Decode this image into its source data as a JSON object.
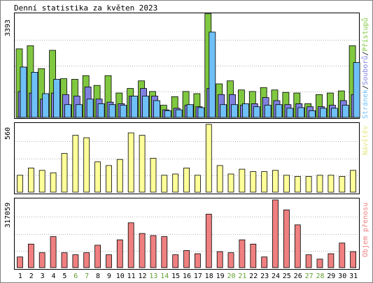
{
  "title": "Denní statistika za květen 2023",
  "colors": {
    "background": "#ffffff",
    "panel_border": "#000000",
    "grid": "#b4b4b4",
    "pristupy": "#80c840",
    "soubory": "#8080e0",
    "stranky": "#70c0f8",
    "navstevy": "#ffff99",
    "objem": "#f08080",
    "weekend_label": "#60a030",
    "weekday_label": "#000000"
  },
  "chart_data": [
    {
      "type": "bar",
      "name": "hits",
      "ymax_label": "3393",
      "ylim": [
        0,
        3393
      ],
      "legend": [
        {
          "text": "Stránek",
          "color": "#70c0f8"
        },
        {
          "text": "Souborů",
          "color": "#8080e0"
        },
        {
          "text": "Přístupů",
          "color": "#80c840"
        }
      ],
      "categories": [
        "1",
        "2",
        "3",
        "4",
        "5",
        "6",
        "7",
        "8",
        "9",
        "10",
        "11",
        "12",
        "13",
        "14",
        "15",
        "16",
        "17",
        "18",
        "19",
        "20",
        "21",
        "22",
        "23",
        "24",
        "25",
        "26",
        "27",
        "28",
        "29",
        "30",
        "31"
      ],
      "weekend": [
        6,
        7,
        13,
        14,
        20,
        21,
        27,
        28
      ],
      "series": [
        {
          "name": "Přístupů",
          "color": "#80c840",
          "values": [
            2250,
            2350,
            1600,
            2200,
            1270,
            1250,
            1370,
            1050,
            1370,
            800,
            950,
            1200,
            850,
            400,
            680,
            850,
            780,
            3400,
            1100,
            1200,
            900,
            850,
            980,
            900,
            820,
            800,
            450,
            750,
            800,
            870,
            2350
          ]
        },
        {
          "name": "Souborů",
          "color": "#8080e0",
          "values": [
            850,
            800,
            600,
            800,
            750,
            700,
            1000,
            600,
            500,
            450,
            700,
            950,
            700,
            250,
            300,
            400,
            350,
            950,
            750,
            750,
            400,
            450,
            650,
            550,
            420,
            450,
            350,
            350,
            400,
            550,
            750
          ]
        },
        {
          "name": "Stránek",
          "color": "#70c0f8",
          "values": [
            1650,
            1480,
            780,
            1250,
            420,
            420,
            600,
            450,
            420,
            400,
            700,
            700,
            550,
            220,
            250,
            420,
            320,
            2800,
            420,
            420,
            450,
            350,
            400,
            420,
            300,
            320,
            220,
            300,
            300,
            400,
            1800
          ]
        }
      ]
    },
    {
      "type": "bar",
      "name": "visits",
      "ymax_label": "560",
      "ylim": [
        0,
        560
      ],
      "legend": [
        {
          "text": "Návštěv",
          "color": "#ffff99"
        }
      ],
      "categories": [
        "1",
        "2",
        "3",
        "4",
        "5",
        "6",
        "7",
        "8",
        "9",
        "10",
        "11",
        "12",
        "13",
        "14",
        "15",
        "16",
        "17",
        "18",
        "19",
        "20",
        "21",
        "22",
        "23",
        "24",
        "25",
        "26",
        "27",
        "28",
        "29",
        "30",
        "31"
      ],
      "series": [
        {
          "name": "Návštěv",
          "color": "#ffff99",
          "values": [
            140,
            200,
            180,
            160,
            320,
            470,
            450,
            250,
            220,
            270,
            490,
            470,
            280,
            140,
            150,
            200,
            140,
            560,
            220,
            150,
            190,
            170,
            170,
            180,
            140,
            130,
            130,
            140,
            140,
            130,
            180
          ]
        }
      ]
    },
    {
      "type": "bar",
      "name": "volume",
      "ymax_label": "317059",
      "ylim": [
        0,
        317059
      ],
      "legend": [
        {
          "text": "Objem přenosu",
          "color": "#f08080"
        }
      ],
      "categories": [
        "1",
        "2",
        "3",
        "4",
        "5",
        "6",
        "7",
        "8",
        "9",
        "10",
        "11",
        "12",
        "13",
        "14",
        "15",
        "16",
        "17",
        "18",
        "19",
        "20",
        "21",
        "22",
        "23",
        "24",
        "25",
        "26",
        "27",
        "28",
        "29",
        "30",
        "31"
      ],
      "series": [
        {
          "name": "Objem přenosu",
          "color": "#f08080",
          "values": [
            50000,
            110000,
            70000,
            145000,
            70000,
            60000,
            70000,
            105000,
            60000,
            130000,
            210000,
            160000,
            150000,
            145000,
            60000,
            80000,
            65000,
            250000,
            75000,
            70000,
            130000,
            110000,
            50000,
            317059,
            270000,
            200000,
            60000,
            40000,
            65000,
            115000,
            75000
          ]
        }
      ]
    }
  ]
}
